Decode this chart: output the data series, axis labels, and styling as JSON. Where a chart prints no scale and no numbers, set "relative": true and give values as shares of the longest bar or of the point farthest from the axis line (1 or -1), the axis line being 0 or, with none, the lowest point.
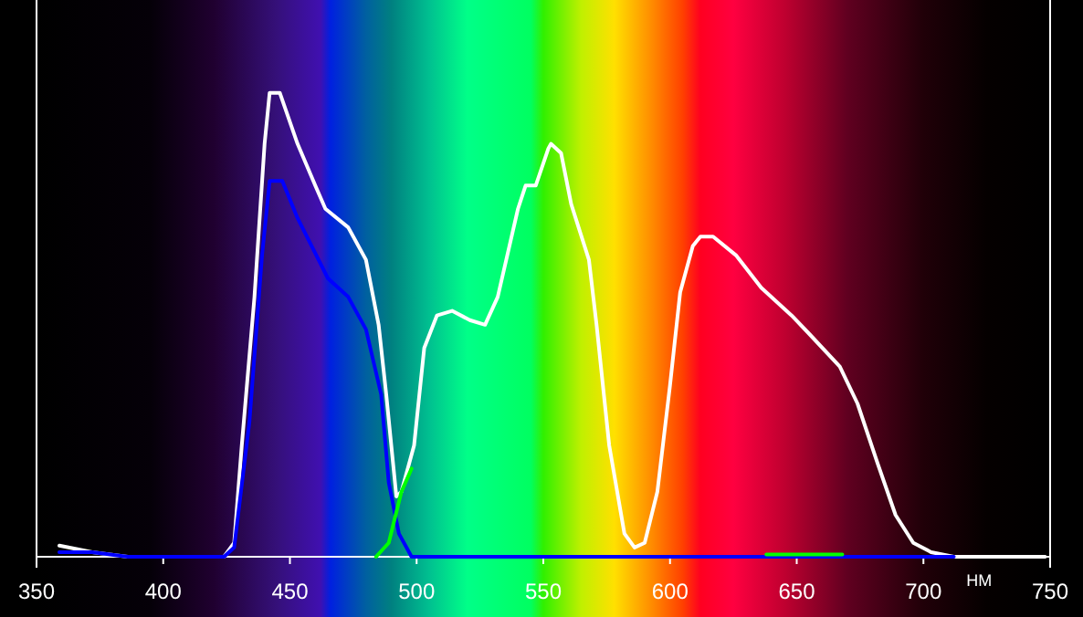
{
  "chart_data": {
    "type": "line",
    "relative": true,
    "xlabel": "НМ",
    "xlim": [
      350,
      750
    ],
    "xticks": [
      350,
      400,
      450,
      500,
      550,
      600,
      650,
      700,
      750
    ],
    "grid": false,
    "marker": "none",
    "line_style": "solid",
    "series": [
      {
        "color": "#ffffff",
        "x": [
          359,
          372,
          386,
          424,
          428,
          431,
          436,
          440,
          442,
          446,
          453,
          460,
          464,
          473,
          480,
          485,
          488,
          492,
          494,
          499,
          503,
          508,
          514,
          521,
          527,
          532,
          540,
          543,
          547,
          552,
          553,
          557,
          561,
          568,
          571,
          576,
          582,
          586,
          590,
          595,
          600,
          604,
          609,
          612,
          617,
          626,
          636,
          648,
          655,
          667,
          674,
          682,
          689,
          696,
          703,
          712,
          748
        ],
        "values": [
          0.024,
          0.01,
          0,
          0,
          0.03,
          0.24,
          0.56,
          0.89,
          1,
          1,
          0.89,
          0.8,
          0.75,
          0.71,
          0.64,
          0.5,
          0.35,
          0.13,
          0.14,
          0.24,
          0.45,
          0.52,
          0.53,
          0.51,
          0.5,
          0.56,
          0.75,
          0.8,
          0.8,
          0.88,
          0.89,
          0.87,
          0.76,
          0.64,
          0.5,
          0.24,
          0.05,
          0.02,
          0.03,
          0.14,
          0.37,
          0.57,
          0.67,
          0.69,
          0.69,
          0.65,
          0.58,
          0.52,
          0.48,
          0.41,
          0.33,
          0.2,
          0.09,
          0.03,
          0.01,
          0,
          0
        ]
      },
      {
        "color": "#0000ff",
        "x": [
          359,
          372,
          386,
          424,
          428,
          434,
          439,
          442,
          447,
          453,
          465,
          473,
          480,
          486,
          489,
          493,
          498,
          712
        ],
        "values": [
          0.01,
          0.01,
          0,
          0,
          0.02,
          0.29,
          0.65,
          0.81,
          0.81,
          0.73,
          0.6,
          0.56,
          0.49,
          0.35,
          0.16,
          0.05,
          0,
          0
        ]
      },
      {
        "color": "#00ff00",
        "x": [
          484,
          489,
          494,
          498,
          560,
          638,
          668
        ],
        "values": [
          0,
          0.03,
          0.14,
          0.19,
          null,
          0.005,
          0.005
        ]
      }
    ]
  }
}
